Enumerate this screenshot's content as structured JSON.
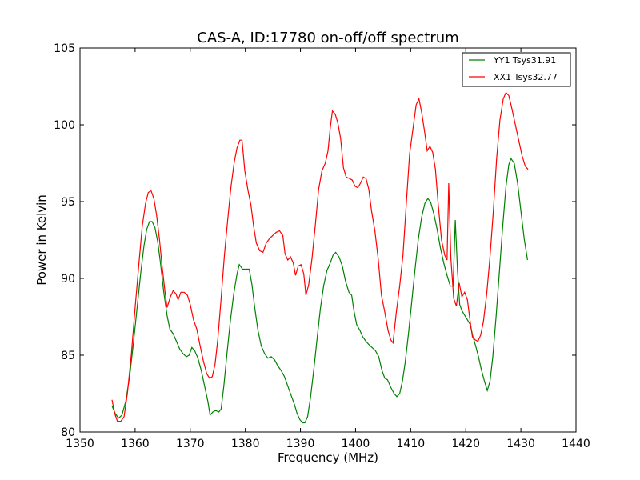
{
  "chart_data": {
    "type": "line",
    "title": "CAS-A, ID:17780 on-off/off spectrum",
    "xlabel": "Frequency (MHz)",
    "ylabel": "Power in Kelvin",
    "xlim": [
      1350,
      1440
    ],
    "ylim": [
      80,
      105
    ],
    "xticks": [
      "1350",
      "1360",
      "1370",
      "1380",
      "1390",
      "1400",
      "1410",
      "1420",
      "1430",
      "1440"
    ],
    "yticks": [
      "80",
      "85",
      "90",
      "95",
      "100",
      "105"
    ],
    "grid": false,
    "legend_position": "top-right",
    "series": [
      {
        "name": "YY1 Tsys31.91",
        "color": "#008000",
        "points": [
          [
            1355.8,
            81.7
          ],
          [
            1356.4,
            81.2
          ],
          [
            1357.0,
            80.9
          ],
          [
            1357.6,
            81.1
          ],
          [
            1358.3,
            82.0
          ],
          [
            1359.0,
            83.6
          ],
          [
            1359.7,
            85.8
          ],
          [
            1360.4,
            88.2
          ],
          [
            1361.0,
            90.3
          ],
          [
            1361.6,
            92.1
          ],
          [
            1362.1,
            93.2
          ],
          [
            1362.6,
            93.7
          ],
          [
            1363.1,
            93.7
          ],
          [
            1363.6,
            93.3
          ],
          [
            1364.1,
            92.4
          ],
          [
            1364.6,
            91.0
          ],
          [
            1365.2,
            89.1
          ],
          [
            1365.8,
            87.6
          ],
          [
            1366.3,
            86.7
          ],
          [
            1366.9,
            86.4
          ],
          [
            1367.5,
            85.9
          ],
          [
            1368.1,
            85.4
          ],
          [
            1368.7,
            85.1
          ],
          [
            1369.3,
            84.9
          ],
          [
            1369.8,
            85.0
          ],
          [
            1370.3,
            85.5
          ],
          [
            1370.8,
            85.3
          ],
          [
            1371.4,
            84.8
          ],
          [
            1372.0,
            84.0
          ],
          [
            1372.6,
            83.0
          ],
          [
            1373.2,
            82.0
          ],
          [
            1373.6,
            81.1
          ],
          [
            1374.1,
            81.3
          ],
          [
            1374.6,
            81.4
          ],
          [
            1375.2,
            81.3
          ],
          [
            1375.6,
            81.5
          ],
          [
            1376.1,
            83.0
          ],
          [
            1376.7,
            85.2
          ],
          [
            1377.3,
            87.3
          ],
          [
            1377.9,
            89.0
          ],
          [
            1378.5,
            90.3
          ],
          [
            1378.9,
            90.9
          ],
          [
            1379.5,
            90.6
          ],
          [
            1380.1,
            90.6
          ],
          [
            1380.7,
            90.6
          ],
          [
            1381.2,
            89.6
          ],
          [
            1381.7,
            88.1
          ],
          [
            1382.3,
            86.6
          ],
          [
            1382.9,
            85.6
          ],
          [
            1383.5,
            85.1
          ],
          [
            1384.1,
            84.8
          ],
          [
            1384.7,
            84.9
          ],
          [
            1385.3,
            84.7
          ],
          [
            1385.9,
            84.3
          ],
          [
            1386.5,
            84.0
          ],
          [
            1387.1,
            83.6
          ],
          [
            1387.7,
            83.0
          ],
          [
            1388.3,
            82.4
          ],
          [
            1388.9,
            81.8
          ],
          [
            1389.4,
            81.2
          ],
          [
            1389.9,
            80.8
          ],
          [
            1390.4,
            80.6
          ],
          [
            1390.8,
            80.6
          ],
          [
            1391.3,
            81.0
          ],
          [
            1391.8,
            82.2
          ],
          [
            1392.4,
            84.0
          ],
          [
            1393.0,
            86.0
          ],
          [
            1393.6,
            88.0
          ],
          [
            1394.2,
            89.5
          ],
          [
            1394.8,
            90.5
          ],
          [
            1395.4,
            91.0
          ],
          [
            1395.9,
            91.5
          ],
          [
            1396.4,
            91.7
          ],
          [
            1397.0,
            91.4
          ],
          [
            1397.6,
            90.8
          ],
          [
            1398.2,
            89.8
          ],
          [
            1398.8,
            89.1
          ],
          [
            1399.3,
            88.9
          ],
          [
            1399.7,
            87.9
          ],
          [
            1400.2,
            87.0
          ],
          [
            1400.8,
            86.6
          ],
          [
            1401.3,
            86.2
          ],
          [
            1401.9,
            85.9
          ],
          [
            1402.4,
            85.7
          ],
          [
            1403.0,
            85.5
          ],
          [
            1403.6,
            85.3
          ],
          [
            1404.2,
            84.9
          ],
          [
            1404.8,
            84.0
          ],
          [
            1405.3,
            83.5
          ],
          [
            1405.8,
            83.4
          ],
          [
            1406.4,
            82.9
          ],
          [
            1407.0,
            82.5
          ],
          [
            1407.5,
            82.3
          ],
          [
            1408.0,
            82.5
          ],
          [
            1408.5,
            83.3
          ],
          [
            1409.0,
            84.5
          ],
          [
            1409.6,
            86.4
          ],
          [
            1410.2,
            88.5
          ],
          [
            1410.8,
            90.6
          ],
          [
            1411.4,
            92.6
          ],
          [
            1412.0,
            94.0
          ],
          [
            1412.6,
            94.9
          ],
          [
            1413.1,
            95.2
          ],
          [
            1413.6,
            95.0
          ],
          [
            1414.2,
            94.2
          ],
          [
            1414.8,
            93.2
          ],
          [
            1415.4,
            92.0
          ],
          [
            1416.0,
            91.0
          ],
          [
            1416.6,
            90.2
          ],
          [
            1417.2,
            89.5
          ],
          [
            1417.7,
            89.5
          ],
          [
            1418.1,
            93.8
          ],
          [
            1418.5,
            90.5
          ],
          [
            1418.9,
            88.3
          ],
          [
            1419.3,
            87.9
          ],
          [
            1419.8,
            87.6
          ],
          [
            1420.3,
            87.3
          ],
          [
            1420.8,
            87.0
          ],
          [
            1421.3,
            86.2
          ],
          [
            1421.8,
            85.6
          ],
          [
            1422.3,
            84.9
          ],
          [
            1422.8,
            84.1
          ],
          [
            1423.4,
            83.3
          ],
          [
            1423.9,
            82.7
          ],
          [
            1424.4,
            83.3
          ],
          [
            1424.9,
            84.9
          ],
          [
            1425.5,
            87.5
          ],
          [
            1426.1,
            90.4
          ],
          [
            1426.7,
            93.4
          ],
          [
            1427.3,
            96.0
          ],
          [
            1427.8,
            97.4
          ],
          [
            1428.2,
            97.8
          ],
          [
            1428.8,
            97.5
          ],
          [
            1429.4,
            96.2
          ],
          [
            1430.0,
            94.4
          ],
          [
            1430.6,
            92.6
          ],
          [
            1431.2,
            91.2
          ]
        ]
      },
      {
        "name": "XX1 Tsys32.77",
        "color": "#ff0000",
        "points": [
          [
            1355.8,
            82.1
          ],
          [
            1356.3,
            81.2
          ],
          [
            1356.8,
            80.7
          ],
          [
            1357.4,
            80.7
          ],
          [
            1358.0,
            81.0
          ],
          [
            1358.6,
            82.5
          ],
          [
            1359.3,
            85.0
          ],
          [
            1360.0,
            88.1
          ],
          [
            1360.7,
            91.0
          ],
          [
            1361.3,
            93.4
          ],
          [
            1361.9,
            94.9
          ],
          [
            1362.4,
            95.6
          ],
          [
            1362.9,
            95.7
          ],
          [
            1363.4,
            95.2
          ],
          [
            1363.9,
            94.1
          ],
          [
            1364.4,
            92.6
          ],
          [
            1364.9,
            90.8
          ],
          [
            1365.4,
            89.2
          ],
          [
            1365.8,
            88.1
          ],
          [
            1366.4,
            88.8
          ],
          [
            1366.9,
            89.2
          ],
          [
            1367.4,
            89.0
          ],
          [
            1367.8,
            88.6
          ],
          [
            1368.3,
            89.1
          ],
          [
            1368.9,
            89.1
          ],
          [
            1369.5,
            88.9
          ],
          [
            1370.0,
            88.3
          ],
          [
            1370.6,
            87.3
          ],
          [
            1371.2,
            86.7
          ],
          [
            1371.8,
            85.6
          ],
          [
            1372.4,
            84.6
          ],
          [
            1373.0,
            83.8
          ],
          [
            1373.5,
            83.5
          ],
          [
            1374.0,
            83.6
          ],
          [
            1374.5,
            84.4
          ],
          [
            1375.0,
            86.0
          ],
          [
            1375.6,
            88.7
          ],
          [
            1376.2,
            91.5
          ],
          [
            1376.8,
            93.8
          ],
          [
            1377.4,
            96.0
          ],
          [
            1378.0,
            97.6
          ],
          [
            1378.5,
            98.5
          ],
          [
            1379.0,
            99.0
          ],
          [
            1379.4,
            99.0
          ],
          [
            1379.9,
            97.0
          ],
          [
            1380.5,
            95.7
          ],
          [
            1381.0,
            94.8
          ],
          [
            1381.5,
            93.4
          ],
          [
            1382.0,
            92.3
          ],
          [
            1382.6,
            91.8
          ],
          [
            1383.2,
            91.7
          ],
          [
            1383.8,
            92.3
          ],
          [
            1384.4,
            92.6
          ],
          [
            1385.0,
            92.8
          ],
          [
            1385.6,
            93.0
          ],
          [
            1386.2,
            93.1
          ],
          [
            1386.8,
            92.8
          ],
          [
            1387.2,
            91.6
          ],
          [
            1387.7,
            91.2
          ],
          [
            1388.2,
            91.4
          ],
          [
            1388.7,
            91.0
          ],
          [
            1389.1,
            90.2
          ],
          [
            1389.6,
            90.8
          ],
          [
            1390.1,
            90.9
          ],
          [
            1390.6,
            90.3
          ],
          [
            1391.0,
            88.9
          ],
          [
            1391.5,
            89.6
          ],
          [
            1392.1,
            91.3
          ],
          [
            1392.7,
            93.5
          ],
          [
            1393.3,
            95.8
          ],
          [
            1393.9,
            97.0
          ],
          [
            1394.5,
            97.5
          ],
          [
            1395.0,
            98.3
          ],
          [
            1395.4,
            99.8
          ],
          [
            1395.8,
            100.9
          ],
          [
            1396.3,
            100.7
          ],
          [
            1396.8,
            100.1
          ],
          [
            1397.3,
            99.1
          ],
          [
            1397.8,
            97.2
          ],
          [
            1398.3,
            96.6
          ],
          [
            1398.9,
            96.5
          ],
          [
            1399.4,
            96.4
          ],
          [
            1399.9,
            96.0
          ],
          [
            1400.4,
            95.9
          ],
          [
            1400.9,
            96.2
          ],
          [
            1401.4,
            96.6
          ],
          [
            1401.9,
            96.5
          ],
          [
            1402.4,
            95.8
          ],
          [
            1402.9,
            94.4
          ],
          [
            1403.5,
            93.1
          ],
          [
            1404.1,
            91.3
          ],
          [
            1404.7,
            88.9
          ],
          [
            1405.3,
            87.8
          ],
          [
            1405.9,
            86.6
          ],
          [
            1406.4,
            86.0
          ],
          [
            1406.8,
            85.8
          ],
          [
            1407.4,
            87.8
          ],
          [
            1408.0,
            89.5
          ],
          [
            1408.6,
            91.5
          ],
          [
            1409.2,
            94.8
          ],
          [
            1409.8,
            98.1
          ],
          [
            1410.4,
            99.7
          ],
          [
            1411.0,
            101.3
          ],
          [
            1411.5,
            101.7
          ],
          [
            1412.0,
            100.8
          ],
          [
            1412.5,
            99.6
          ],
          [
            1413.0,
            98.3
          ],
          [
            1413.5,
            98.6
          ],
          [
            1414.0,
            98.2
          ],
          [
            1414.5,
            97.1
          ],
          [
            1415.0,
            94.8
          ],
          [
            1415.6,
            92.5
          ],
          [
            1416.2,
            91.5
          ],
          [
            1416.6,
            91.2
          ],
          [
            1416.9,
            96.2
          ],
          [
            1417.3,
            91.3
          ],
          [
            1417.8,
            88.7
          ],
          [
            1418.3,
            88.2
          ],
          [
            1418.8,
            89.7
          ],
          [
            1419.3,
            88.8
          ],
          [
            1419.8,
            89.1
          ],
          [
            1420.3,
            88.6
          ],
          [
            1420.8,
            87.2
          ],
          [
            1421.2,
            86.2
          ],
          [
            1421.7,
            86.0
          ],
          [
            1422.2,
            85.9
          ],
          [
            1422.7,
            86.3
          ],
          [
            1423.2,
            87.2
          ],
          [
            1423.8,
            89.0
          ],
          [
            1424.4,
            91.4
          ],
          [
            1425.0,
            94.4
          ],
          [
            1425.6,
            97.8
          ],
          [
            1426.2,
            100.3
          ],
          [
            1426.8,
            101.7
          ],
          [
            1427.3,
            102.1
          ],
          [
            1427.8,
            101.9
          ],
          [
            1428.4,
            101.0
          ],
          [
            1429.0,
            100.0
          ],
          [
            1429.6,
            99.0
          ],
          [
            1430.2,
            98.0
          ],
          [
            1430.8,
            97.3
          ],
          [
            1431.3,
            97.1
          ]
        ]
      }
    ]
  }
}
